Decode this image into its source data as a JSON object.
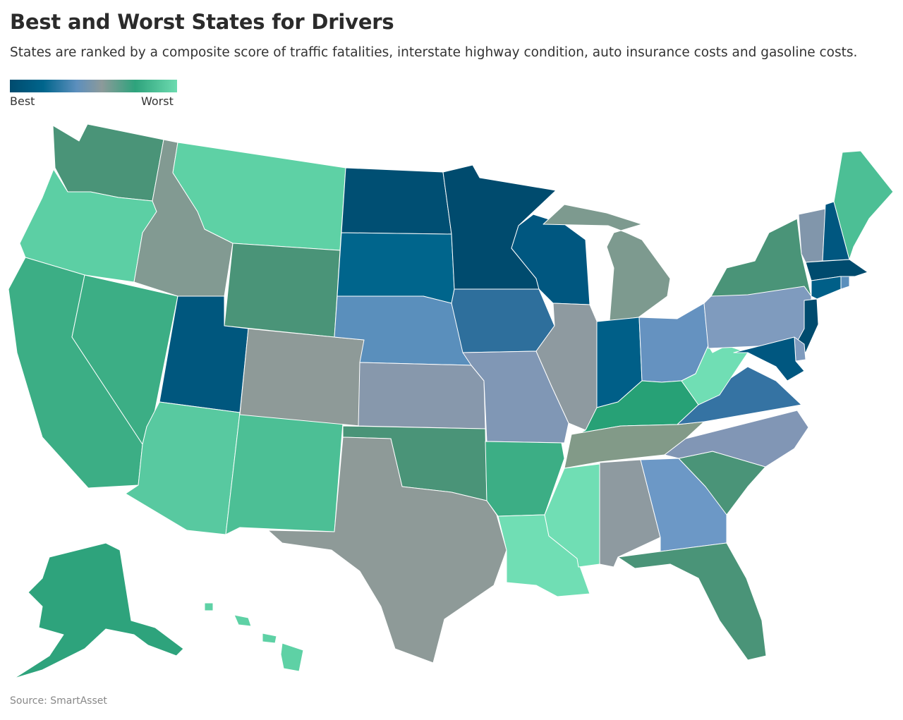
{
  "title": "Best and Worst States for Drivers",
  "subtitle": "States are ranked by a composite score of traffic fatalities, interstate highway condition, auto insurance costs and gasoline costs.",
  "legend": {
    "min_label": "Best",
    "max_label": "Worst",
    "gradient": [
      "#004b6e",
      "#00658c",
      "#5d8fbd",
      "#8c9a9a",
      "#2ea37c",
      "#6ddbb0"
    ]
  },
  "source": "Source: SmartAsset",
  "states": {
    "WA": "#4a9478",
    "OR": "#5ccfa4",
    "CA": "#3cae85",
    "NV": "#3cae85",
    "ID": "#829a92",
    "MT": "#5ed1a5",
    "WY": "#4a9478",
    "UT": "#00577e",
    "AZ": "#58c9a0",
    "NM": "#4cbf95",
    "CO": "#8e9a98",
    "ND": "#004f73",
    "SD": "#00658c",
    "NE": "#5a8fbc",
    "KS": "#8798ac",
    "OK": "#4a9478",
    "TX": "#8e9a98",
    "MN": "#004b6e",
    "IA": "#2e6f9c",
    "MO": "#8097b5",
    "AR": "#3cae85",
    "LA": "#70deb4",
    "WI": "#005780",
    "IL": "#8e9aa0",
    "MI": "#7d9a8f",
    "IN": "#005f88",
    "OH": "#6592c0",
    "KY": "#27a176",
    "TN": "#829a88",
    "MS": "#70deb4",
    "AL": "#8e9aa0",
    "GA": "#6c98c6",
    "FL": "#4a9478",
    "SC": "#4a9478",
    "NC": "#8196b5",
    "VA": "#3573a3",
    "WV": "#70deb4",
    "PA": "#7f9bbe",
    "NY": "#4a9478",
    "VT": "#8196ab",
    "NH": "#005780",
    "ME": "#4cbf95",
    "MA": "#004b6e",
    "CT": "#005f88",
    "NJ": "#004b6e",
    "DE": "#7f9bbe",
    "MD": "#005780",
    "RI": "#5a8fbc",
    "AK": "#2ea37c",
    "HI": "#5ed1a5"
  }
}
